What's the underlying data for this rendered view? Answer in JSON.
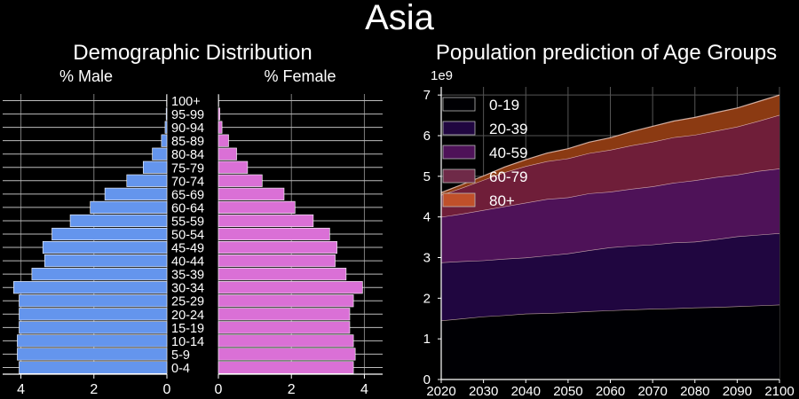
{
  "suptitle": "Asia",
  "chart_data": [
    {
      "type": "bar",
      "orientation": "horizontal",
      "title": "Demographic Distribution",
      "panels": [
        "% Male",
        "% Female"
      ],
      "categories": [
        "0-4",
        "5-9",
        "10-14",
        "15-19",
        "20-24",
        "25-29",
        "30-34",
        "35-39",
        "40-44",
        "45-49",
        "50-54",
        "55-59",
        "60-64",
        "65-69",
        "70-74",
        "75-79",
        "80-84",
        "85-89",
        "90-94",
        "95-99",
        "100+"
      ],
      "series": [
        {
          "name": "% Male",
          "color": "#6495ED",
          "values": [
            4.05,
            4.1,
            4.1,
            4.05,
            4.05,
            4.05,
            4.2,
            3.7,
            3.35,
            3.4,
            3.15,
            2.65,
            2.1,
            1.7,
            1.1,
            0.65,
            0.4,
            0.15,
            0.05,
            0.02,
            0.01
          ]
        },
        {
          "name": "% Female",
          "color": "#DA70D6",
          "values": [
            3.7,
            3.75,
            3.7,
            3.6,
            3.6,
            3.7,
            3.95,
            3.5,
            3.2,
            3.25,
            3.05,
            2.6,
            2.1,
            1.8,
            1.2,
            0.8,
            0.5,
            0.28,
            0.1,
            0.04,
            0.01
          ]
        }
      ],
      "male_xticks": [
        4,
        2,
        0
      ],
      "female_xticks": [
        0,
        2,
        4
      ],
      "xlim": [
        0,
        4.5
      ],
      "grid": true
    },
    {
      "type": "area",
      "stacked": true,
      "title": "Population prediction of Age Groups",
      "scale_label": "1e9",
      "x": [
        2020,
        2025,
        2030,
        2035,
        2040,
        2045,
        2050,
        2055,
        2060,
        2065,
        2070,
        2075,
        2080,
        2085,
        2090,
        2095,
        2100
      ],
      "xticks": [
        2020,
        2030,
        2040,
        2050,
        2060,
        2070,
        2080,
        2090,
        2100
      ],
      "ylim": [
        0,
        7.2
      ],
      "yticks": [
        0,
        1,
        2,
        3,
        4,
        5,
        6,
        7
      ],
      "grid": true,
      "legend_position": "top-left",
      "series": [
        {
          "name": "0-19",
          "color": "#000004",
          "values": [
            1.45,
            1.5,
            1.55,
            1.58,
            1.62,
            1.63,
            1.65,
            1.68,
            1.7,
            1.72,
            1.74,
            1.75,
            1.77,
            1.78,
            1.8,
            1.82,
            1.84
          ]
        },
        {
          "name": "20-39",
          "color": "#200640",
          "values": [
            1.43,
            1.41,
            1.38,
            1.39,
            1.38,
            1.42,
            1.45,
            1.5,
            1.55,
            1.57,
            1.58,
            1.62,
            1.62,
            1.67,
            1.72,
            1.74,
            1.76
          ]
        },
        {
          "name": "40-59",
          "color": "#4E1258",
          "values": [
            1.12,
            1.17,
            1.24,
            1.29,
            1.35,
            1.39,
            1.38,
            1.4,
            1.37,
            1.4,
            1.43,
            1.47,
            1.51,
            1.53,
            1.52,
            1.57,
            1.59
          ]
        },
        {
          "name": "60-79",
          "color": "#6F1E39",
          "values": [
            0.54,
            0.64,
            0.74,
            0.84,
            0.9,
            0.93,
            0.96,
            0.99,
            1.03,
            1.07,
            1.1,
            1.12,
            1.12,
            1.14,
            1.18,
            1.23,
            1.32
          ]
        },
        {
          "name": "80+",
          "color": "#8B3A12",
          "values": [
            0.06,
            0.08,
            0.1,
            0.13,
            0.16,
            0.2,
            0.24,
            0.27,
            0.3,
            0.34,
            0.38,
            0.4,
            0.43,
            0.45,
            0.46,
            0.48,
            0.49
          ]
        }
      ],
      "legend_swatch_colors": [
        "#000004",
        "#200640",
        "#4E1258",
        "#6F2A48",
        "#C0502A"
      ]
    }
  ]
}
